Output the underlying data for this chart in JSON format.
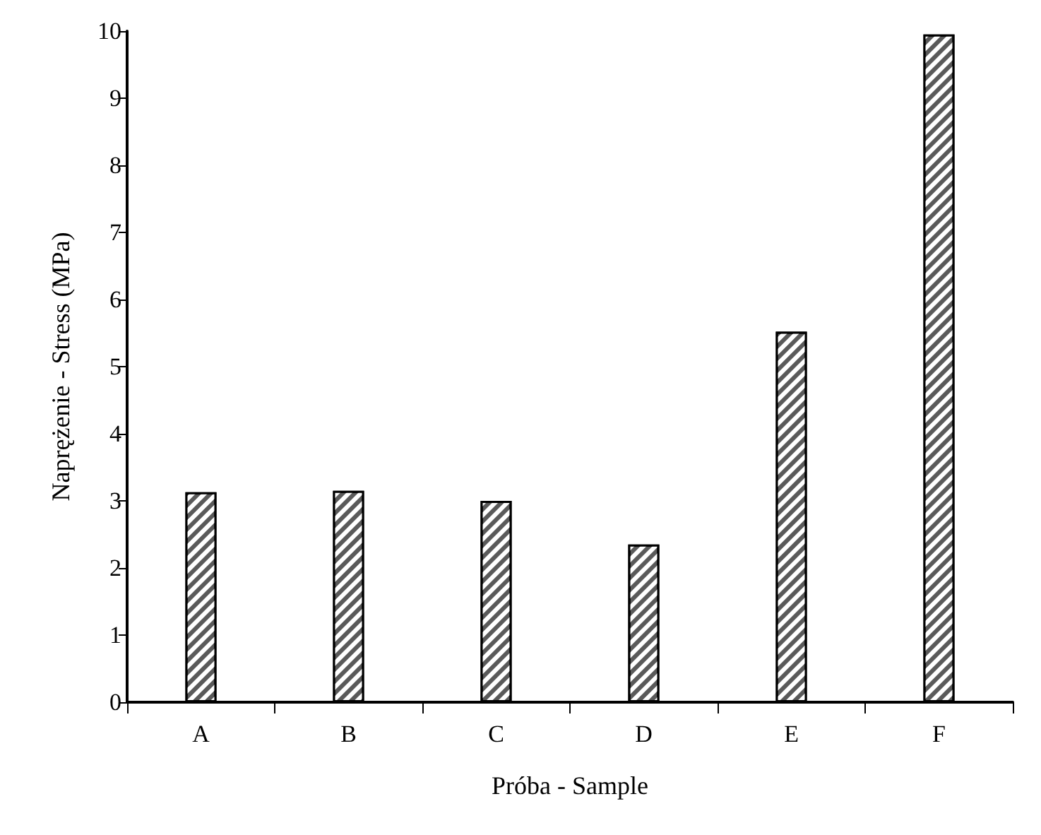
{
  "chart_data": {
    "type": "bar",
    "xlabel": "Próba - Sample",
    "ylabel": "Naprężenie - Stress (MPa)",
    "categories": [
      "A",
      "B",
      "C",
      "D",
      "E",
      "F"
    ],
    "values": [
      3.13,
      3.15,
      3.0,
      2.35,
      5.52,
      9.95
    ],
    "color": "#5a5a5a",
    "ylim": [
      0,
      10
    ],
    "yticks": [
      0,
      1,
      2,
      3,
      4,
      5,
      6,
      7,
      8,
      9,
      10
    ],
    "grid": false
  }
}
